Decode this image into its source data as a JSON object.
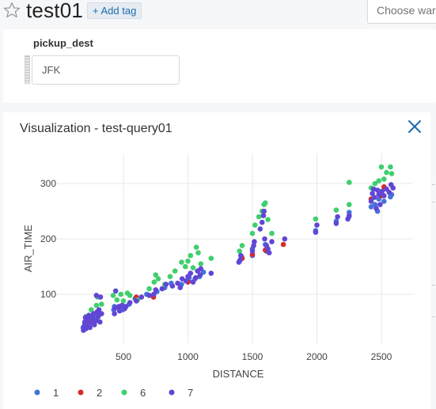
{
  "header": {
    "title": "test01",
    "add_tag_label": "+ Add tag",
    "warehouse_placeholder": "Choose ware"
  },
  "parameters": {
    "label": "pickup_dest",
    "value": "JFK"
  },
  "visualization": {
    "title": "Visualization - test-query01"
  },
  "colors": {
    "s1": "#4473d8",
    "s2": "#d62b2b",
    "s6": "#3fcf6e",
    "s7": "#6146d6",
    "link": "#1a6bb0",
    "grid": "#e8e8e8"
  },
  "icons": {
    "star": "star-icon",
    "close": "close-icon",
    "drag": "drag-handle-icon"
  },
  "chart_data": {
    "type": "scatter",
    "xlabel": "DISTANCE",
    "ylabel": "AIR_TIME",
    "xlim": [
      100,
      2700
    ],
    "ylim": [
      20,
      360
    ],
    "xticks": [
      500,
      1000,
      1500,
      2000,
      2500
    ],
    "yticks": [
      100,
      200,
      300
    ],
    "grid": true,
    "legend_position": "bottom-left",
    "series": [
      {
        "name": "1",
        "color": "#4473d8",
        "points": [
          [
            187,
            40
          ],
          [
            200,
            48
          ],
          [
            213,
            55
          ],
          [
            220,
            45
          ],
          [
            228,
            52
          ],
          [
            240,
            60
          ],
          [
            250,
            48
          ],
          [
            264,
            55
          ],
          [
            280,
            62
          ],
          [
            300,
            58
          ],
          [
            320,
            65
          ],
          [
            425,
            72
          ],
          [
            430,
            78
          ],
          [
            472,
            75
          ],
          [
            495,
            72
          ],
          [
            502,
            78
          ],
          [
            544,
            82
          ],
          [
            590,
            92
          ],
          [
            680,
            100
          ],
          [
            733,
            98
          ],
          [
            760,
            105
          ],
          [
            820,
            112
          ],
          [
            870,
            120
          ],
          [
            950,
            118
          ],
          [
            1005,
            125
          ],
          [
            1010,
            130
          ],
          [
            1055,
            128
          ],
          [
            1090,
            132
          ],
          [
            1120,
            140
          ],
          [
            1400,
            160
          ],
          [
            1416,
            168
          ],
          [
            1500,
            170
          ],
          [
            1500,
            182
          ],
          [
            1600,
            190
          ],
          [
            1607,
            178
          ],
          [
            1990,
            215
          ],
          [
            2150,
            232
          ],
          [
            2248,
            240
          ],
          [
            2250,
            248
          ],
          [
            2420,
            258
          ],
          [
            2450,
            262
          ],
          [
            2470,
            250
          ],
          [
            2480,
            272
          ],
          [
            2520,
            268
          ],
          [
            2570,
            276
          ],
          [
            2580,
            280
          ]
        ]
      },
      {
        "name": "2",
        "color": "#d62b2b",
        "points": [
          [
            230,
            50
          ],
          [
            600,
            95
          ],
          [
            733,
            95
          ],
          [
            1000,
            122
          ],
          [
            1420,
            165
          ],
          [
            1500,
            172
          ],
          [
            1600,
            180
          ],
          [
            1740,
            190
          ],
          [
            2420,
            272
          ],
          [
            2500,
            278
          ],
          [
            2520,
            294
          ]
        ]
      },
      {
        "name": "6",
        "color": "#3fcf6e",
        "points": [
          [
            210,
            60
          ],
          [
            250,
            72
          ],
          [
            290,
            80
          ],
          [
            300,
            95
          ],
          [
            330,
            82
          ],
          [
            420,
            98
          ],
          [
            450,
            90
          ],
          [
            480,
            100
          ],
          [
            500,
            88
          ],
          [
            530,
            102
          ],
          [
            550,
            98
          ],
          [
            610,
            90
          ],
          [
            700,
            110
          ],
          [
            738,
            122
          ],
          [
            750,
            135
          ],
          [
            770,
            128
          ],
          [
            820,
            118
          ],
          [
            862,
            132
          ],
          [
            900,
            142
          ],
          [
            950,
            158
          ],
          [
            980,
            150
          ],
          [
            1000,
            160
          ],
          [
            1020,
            170
          ],
          [
            1040,
            148
          ],
          [
            1065,
            185
          ],
          [
            1080,
            175
          ],
          [
            1100,
            155
          ],
          [
            1180,
            165
          ],
          [
            1400,
            178
          ],
          [
            1420,
            188
          ],
          [
            1500,
            210
          ],
          [
            1520,
            225
          ],
          [
            1550,
            240
          ],
          [
            1575,
            250
          ],
          [
            1590,
            262
          ],
          [
            1600,
            265
          ],
          [
            1620,
            235
          ],
          [
            1650,
            210
          ],
          [
            1990,
            236
          ],
          [
            2150,
            252
          ],
          [
            2250,
            262
          ],
          [
            2250,
            302
          ],
          [
            2420,
            292
          ],
          [
            2450,
            300
          ],
          [
            2480,
            305
          ],
          [
            2500,
            330
          ],
          [
            2520,
            308
          ],
          [
            2540,
            320
          ],
          [
            2570,
            330
          ],
          [
            2580,
            318
          ]
        ]
      },
      {
        "name": "7",
        "color": "#6146d6",
        "points": [
          [
            190,
            35
          ],
          [
            195,
            42
          ],
          [
            200,
            50
          ],
          [
            205,
            58
          ],
          [
            210,
            38
          ],
          [
            215,
            45
          ],
          [
            225,
            55
          ],
          [
            232,
            62
          ],
          [
            240,
            40
          ],
          [
            248,
            50
          ],
          [
            260,
            58
          ],
          [
            268,
            65
          ],
          [
            275,
            45
          ],
          [
            285,
            52
          ],
          [
            290,
            98
          ],
          [
            295,
            68
          ],
          [
            305,
            60
          ],
          [
            310,
            72
          ],
          [
            318,
            50
          ],
          [
            322,
            95
          ],
          [
            330,
            65
          ],
          [
            430,
            65
          ],
          [
            435,
            75
          ],
          [
            440,
            106
          ],
          [
            465,
            78
          ],
          [
            470,
            70
          ],
          [
            490,
            80
          ],
          [
            510,
            74
          ],
          [
            520,
            78
          ],
          [
            550,
            85
          ],
          [
            600,
            88
          ],
          [
            640,
            95
          ],
          [
            700,
            98
          ],
          [
            735,
            100
          ],
          [
            750,
            108
          ],
          [
            800,
            110
          ],
          [
            830,
            118
          ],
          [
            880,
            115
          ],
          [
            920,
            120
          ],
          [
            940,
            112
          ],
          [
            955,
            128
          ],
          [
            985,
            124
          ],
          [
            1000,
            132
          ],
          [
            1020,
            138
          ],
          [
            1040,
            122
          ],
          [
            1060,
            130
          ],
          [
            1075,
            142
          ],
          [
            1095,
            135
          ],
          [
            1100,
            146
          ],
          [
            1180,
            138
          ],
          [
            1395,
            158
          ],
          [
            1405,
            162
          ],
          [
            1410,
            170
          ],
          [
            1500,
            178
          ],
          [
            1510,
            188
          ],
          [
            1515,
            195
          ],
          [
            1560,
            218
          ],
          [
            1575,
            230
          ],
          [
            1585,
            242
          ],
          [
            1590,
            250
          ],
          [
            1595,
            200
          ],
          [
            1610,
            188
          ],
          [
            1620,
            182
          ],
          [
            1630,
            175
          ],
          [
            1650,
            195
          ],
          [
            1750,
            200
          ],
          [
            1990,
            212
          ],
          [
            2000,
            225
          ],
          [
            2150,
            228
          ],
          [
            2160,
            240
          ],
          [
            2240,
            236
          ],
          [
            2250,
            242
          ],
          [
            2420,
            268
          ],
          [
            2430,
            282
          ],
          [
            2440,
            290
          ],
          [
            2445,
            275
          ],
          [
            2460,
            255
          ],
          [
            2470,
            288
          ],
          [
            2480,
            280
          ],
          [
            2490,
            262
          ],
          [
            2505,
            286
          ],
          [
            2520,
            278
          ],
          [
            2540,
            290
          ],
          [
            2560,
            284
          ],
          [
            2575,
            298
          ],
          [
            2590,
            292
          ]
        ]
      }
    ]
  }
}
